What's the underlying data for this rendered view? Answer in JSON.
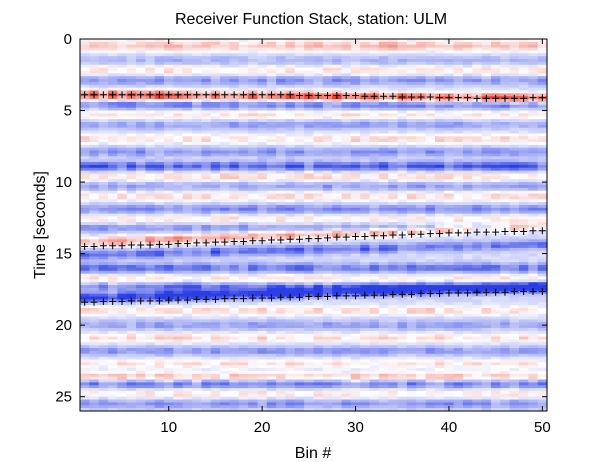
{
  "chart_data": {
    "type": "heatmap",
    "title": "Receiver Function Stack,  station: ULM",
    "xlabel": "Bin #",
    "ylabel": "Time [seconds]",
    "xlim": [
      1,
      50
    ],
    "ylim": [
      0,
      26
    ],
    "y_reversed": true,
    "x_ticks": [
      10,
      20,
      30,
      40,
      50
    ],
    "y_ticks": [
      0,
      5,
      10,
      15,
      20,
      25
    ],
    "grid": false,
    "colormap": {
      "negative": "#2a3ee6",
      "zero": "#ffffff",
      "positive": "#e83a2a",
      "background": "#c9cff3"
    },
    "picks": [
      {
        "marker": "+",
        "color": "#000000",
        "points": [
          [
            1,
            3.9
          ],
          [
            2,
            3.9
          ],
          [
            3,
            3.9
          ],
          [
            4,
            3.9
          ],
          [
            5,
            3.9
          ],
          [
            6,
            3.9
          ],
          [
            7,
            3.9
          ],
          [
            8,
            3.9
          ],
          [
            9,
            3.9
          ],
          [
            10,
            3.9
          ],
          [
            11,
            3.9
          ],
          [
            12,
            3.9
          ],
          [
            13,
            3.9
          ],
          [
            14,
            3.9
          ],
          [
            15,
            3.9
          ],
          [
            16,
            3.9
          ],
          [
            17,
            3.9
          ],
          [
            18,
            3.9
          ],
          [
            19,
            3.9
          ],
          [
            20,
            3.9
          ],
          [
            21,
            3.9
          ],
          [
            22,
            3.9
          ],
          [
            23,
            3.9
          ],
          [
            24,
            3.95
          ],
          [
            25,
            3.95
          ],
          [
            26,
            3.95
          ],
          [
            27,
            3.95
          ],
          [
            28,
            3.95
          ],
          [
            29,
            3.95
          ],
          [
            30,
            3.95
          ],
          [
            31,
            4.0
          ],
          [
            32,
            4.0
          ],
          [
            33,
            4.0
          ],
          [
            34,
            4.0
          ],
          [
            35,
            4.05
          ],
          [
            36,
            4.05
          ],
          [
            37,
            4.05
          ],
          [
            38,
            4.05
          ],
          [
            39,
            4.1
          ],
          [
            40,
            4.1
          ],
          [
            41,
            4.1
          ],
          [
            42,
            4.1
          ],
          [
            43,
            4.15
          ],
          [
            44,
            4.15
          ],
          [
            45,
            4.15
          ],
          [
            46,
            4.15
          ],
          [
            47,
            4.15
          ],
          [
            48,
            4.15
          ],
          [
            49,
            4.1
          ],
          [
            50,
            4.1
          ]
        ]
      },
      {
        "marker": "+",
        "color": "#000000",
        "points": [
          [
            1,
            14.5
          ],
          [
            2,
            14.5
          ],
          [
            3,
            14.45
          ],
          [
            4,
            14.45
          ],
          [
            5,
            14.45
          ],
          [
            6,
            14.4
          ],
          [
            7,
            14.4
          ],
          [
            8,
            14.4
          ],
          [
            9,
            14.35
          ],
          [
            10,
            14.35
          ],
          [
            11,
            14.3
          ],
          [
            12,
            14.3
          ],
          [
            13,
            14.25
          ],
          [
            14,
            14.25
          ],
          [
            15,
            14.2
          ],
          [
            16,
            14.2
          ],
          [
            17,
            14.15
          ],
          [
            18,
            14.15
          ],
          [
            19,
            14.1
          ],
          [
            20,
            14.1
          ],
          [
            21,
            14.05
          ],
          [
            22,
            14.05
          ],
          [
            23,
            14.0
          ],
          [
            24,
            14.0
          ],
          [
            25,
            13.95
          ],
          [
            26,
            13.95
          ],
          [
            27,
            13.9
          ],
          [
            28,
            13.85
          ],
          [
            29,
            13.85
          ],
          [
            30,
            13.8
          ],
          [
            31,
            13.8
          ],
          [
            32,
            13.75
          ],
          [
            33,
            13.75
          ],
          [
            34,
            13.7
          ],
          [
            35,
            13.7
          ],
          [
            36,
            13.65
          ],
          [
            37,
            13.65
          ],
          [
            38,
            13.6
          ],
          [
            39,
            13.6
          ],
          [
            40,
            13.55
          ],
          [
            41,
            13.55
          ],
          [
            42,
            13.55
          ],
          [
            43,
            13.5
          ],
          [
            44,
            13.5
          ],
          [
            45,
            13.5
          ],
          [
            46,
            13.45
          ],
          [
            47,
            13.45
          ],
          [
            48,
            13.45
          ],
          [
            49,
            13.4
          ],
          [
            50,
            13.4
          ]
        ]
      },
      {
        "marker": "+",
        "color": "#000000",
        "points": [
          [
            1,
            18.4
          ],
          [
            2,
            18.4
          ],
          [
            3,
            18.35
          ],
          [
            4,
            18.35
          ],
          [
            5,
            18.35
          ],
          [
            6,
            18.3
          ],
          [
            7,
            18.3
          ],
          [
            8,
            18.3
          ],
          [
            9,
            18.3
          ],
          [
            10,
            18.25
          ],
          [
            11,
            18.25
          ],
          [
            12,
            18.25
          ],
          [
            13,
            18.2
          ],
          [
            14,
            18.2
          ],
          [
            15,
            18.2
          ],
          [
            16,
            18.15
          ],
          [
            17,
            18.15
          ],
          [
            18,
            18.15
          ],
          [
            19,
            18.1
          ],
          [
            20,
            18.1
          ],
          [
            21,
            18.1
          ],
          [
            22,
            18.05
          ],
          [
            23,
            18.05
          ],
          [
            24,
            18.05
          ],
          [
            25,
            18.0
          ],
          [
            26,
            18.0
          ],
          [
            27,
            18.0
          ],
          [
            28,
            17.95
          ],
          [
            29,
            17.95
          ],
          [
            30,
            17.95
          ],
          [
            31,
            17.9
          ],
          [
            32,
            17.9
          ],
          [
            33,
            17.9
          ],
          [
            34,
            17.85
          ],
          [
            35,
            17.85
          ],
          [
            36,
            17.85
          ],
          [
            37,
            17.8
          ],
          [
            38,
            17.8
          ],
          [
            39,
            17.8
          ],
          [
            40,
            17.75
          ],
          [
            41,
            17.75
          ],
          [
            42,
            17.75
          ],
          [
            43,
            17.7
          ],
          [
            44,
            17.7
          ],
          [
            45,
            17.7
          ],
          [
            46,
            17.7
          ],
          [
            47,
            17.65
          ],
          [
            48,
            17.65
          ],
          [
            49,
            17.65
          ],
          [
            50,
            17.65
          ]
        ]
      }
    ],
    "bands": [
      {
        "time": 0.3,
        "amp": 0.25,
        "slope": 0.0
      },
      {
        "time": 0.6,
        "amp": 0.35,
        "slope": 0.0
      },
      {
        "time": 1.5,
        "amp": -0.2,
        "slope": 0.0
      },
      {
        "time": 2.2,
        "amp": 0.3,
        "slope": 0.0
      },
      {
        "time": 2.9,
        "amp": -0.35,
        "slope": 0.0
      },
      {
        "time": 3.9,
        "amp": 1.0,
        "slope": 0.005
      },
      {
        "time": 4.6,
        "amp": -0.45,
        "slope": 0.0
      },
      {
        "time": 5.3,
        "amp": 0.3,
        "slope": 0.0
      },
      {
        "time": 6.0,
        "amp": -0.3,
        "slope": 0.0
      },
      {
        "time": 7.0,
        "amp": 0.35,
        "slope": 0.0
      },
      {
        "time": 7.9,
        "amp": -0.35,
        "slope": 0.0
      },
      {
        "time": 8.9,
        "amp": -0.6,
        "slope": 0.0
      },
      {
        "time": 9.6,
        "amp": 0.35,
        "slope": 0.0
      },
      {
        "time": 10.3,
        "amp": -0.3,
        "slope": 0.0
      },
      {
        "time": 11.0,
        "amp": 0.35,
        "slope": 0.0
      },
      {
        "time": 11.9,
        "amp": -0.4,
        "slope": 0.0
      },
      {
        "time": 12.6,
        "amp": 0.3,
        "slope": 0.0
      },
      {
        "time": 13.2,
        "amp": -0.35,
        "slope": 0.0
      },
      {
        "time": 14.2,
        "amp": 0.6,
        "slope": -0.022
      },
      {
        "time": 15.1,
        "amp": -0.55,
        "slope": -0.015
      },
      {
        "time": 16.0,
        "amp": -0.5,
        "slope": 0.0
      },
      {
        "time": 16.8,
        "amp": 0.3,
        "slope": 0.0
      },
      {
        "time": 17.3,
        "amp": -0.5,
        "slope": 0.0
      },
      {
        "time": 18.1,
        "amp": -0.9,
        "slope": -0.015
      },
      {
        "time": 19.0,
        "amp": 0.35,
        "slope": 0.0
      },
      {
        "time": 20.0,
        "amp": -0.3,
        "slope": 0.0
      },
      {
        "time": 20.9,
        "amp": 0.35,
        "slope": 0.0
      },
      {
        "time": 21.8,
        "amp": -0.35,
        "slope": 0.0
      },
      {
        "time": 22.7,
        "amp": 0.3,
        "slope": 0.0
      },
      {
        "time": 23.6,
        "amp": 0.45,
        "slope": 0.0
      },
      {
        "time": 24.1,
        "amp": -0.45,
        "slope": 0.0
      },
      {
        "time": 24.8,
        "amp": 0.3,
        "slope": 0.0
      },
      {
        "time": 25.5,
        "amp": -0.35,
        "slope": 0.0
      }
    ]
  }
}
